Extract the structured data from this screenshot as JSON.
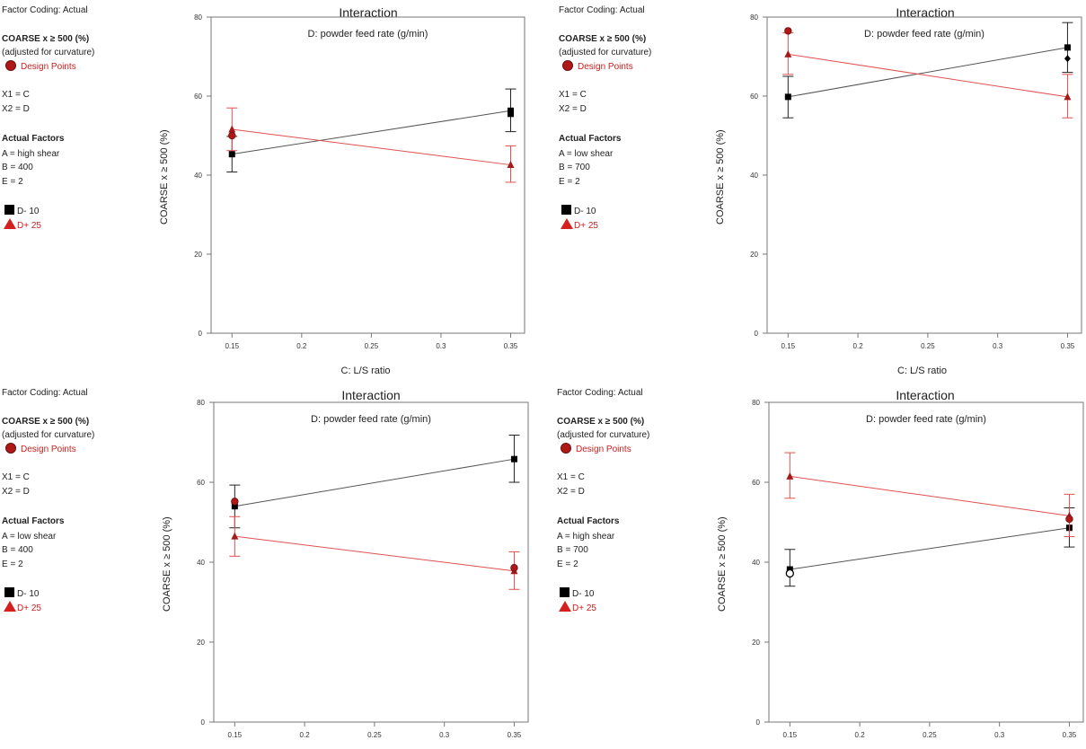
{
  "panels": [
    {
      "sidebar": {
        "factor_coding": "Factor Coding: Actual",
        "response": "COARSE x ≥ 500  (%)",
        "adjusted": "(adjusted for curvature)",
        "design_points": "Design Points",
        "x1": "X1 = C",
        "x2": "X2 = D",
        "actual_factors": "Actual Factors",
        "factor_a": "A = high shear",
        "factor_b": "B = 400",
        "factor_e": "E = 2",
        "legend_low": "D- 10",
        "legend_high": "D+ 25"
      },
      "chart_data": {
        "type": "line",
        "title": "Interaction",
        "subtitle": "D: powder feed rate (g/min)",
        "xlabel": "C: L/S ratio",
        "ylabel": "COARSE x ≥ 500  (%)",
        "x": [
          0.15,
          0.35
        ],
        "xticks": [
          "0.15",
          "0.2",
          "0.25",
          "0.3",
          "0.35"
        ],
        "xtick_values": [
          0.15,
          0.2,
          0.25,
          0.3,
          0.35
        ],
        "yticks": [
          "0",
          "20",
          "40",
          "60",
          "80"
        ],
        "ylim": [
          0,
          80
        ],
        "xlim": [
          0.135,
          0.36
        ],
        "series": [
          {
            "name": "D- 10",
            "color": "#000000",
            "marker": "square",
            "values": [
              45.3,
              56.3
            ],
            "err_low": [
              40.8,
              51.0
            ],
            "err_high": [
              49.8,
              61.8
            ]
          },
          {
            "name": "D+ 25",
            "color": "#e05050",
            "marker": "triangle",
            "values": [
              51.6,
              42.6
            ],
            "err_low": [
              46.2,
              38.2
            ],
            "err_high": [
              57.0,
              47.4
            ]
          }
        ],
        "design_points": [
          {
            "x": 0.15,
            "y": 50.0,
            "shape": "circle"
          },
          {
            "x": 0.35,
            "y": 55.5,
            "shape": "square"
          }
        ]
      }
    },
    {
      "sidebar": {
        "factor_coding": "Factor Coding: Actual",
        "response": "COARSE x ≥ 500  (%)",
        "adjusted": "(adjusted for curvature)",
        "design_points": "Design Points",
        "x1": "X1 = C",
        "x2": "X2 = D",
        "actual_factors": "Actual Factors",
        "factor_a": "A = low shear",
        "factor_b": "B = 700",
        "factor_e": "E = 2",
        "legend_low": "D- 10",
        "legend_high": "D+ 25"
      },
      "chart_data": {
        "type": "line",
        "title": "Interaction",
        "subtitle": "D: powder feed rate (g/min)",
        "xlabel": "C: L/S ratio",
        "ylabel": "COARSE x ≥ 500  (%)",
        "x": [
          0.15,
          0.35
        ],
        "xticks": [
          "0.15",
          "0.2",
          "0.25",
          "0.3",
          "0.35"
        ],
        "xtick_values": [
          0.15,
          0.2,
          0.25,
          0.3,
          0.35
        ],
        "yticks": [
          "0",
          "20",
          "40",
          "60",
          "80"
        ],
        "ylim": [
          0,
          80
        ],
        "xlim": [
          0.135,
          0.36
        ],
        "series": [
          {
            "name": "D- 10",
            "color": "#000000",
            "marker": "square",
            "values": [
              59.8,
              72.3
            ],
            "err_low": [
              54.5,
              66.0
            ],
            "err_high": [
              65.0,
              78.6
            ]
          },
          {
            "name": "D+ 25",
            "color": "#e05050",
            "marker": "triangle",
            "values": [
              70.6,
              59.8
            ],
            "err_low": [
              65.5,
              54.5
            ],
            "err_high": [
              76.0,
              65.5
            ]
          }
        ],
        "design_points": [
          {
            "x": 0.15,
            "y": 76.5,
            "shape": "circle"
          },
          {
            "x": 0.35,
            "y": 69.5,
            "shape": "diamond"
          }
        ]
      }
    },
    {
      "sidebar": {
        "factor_coding": "Factor Coding: Actual",
        "response": "COARSE x ≥ 500  (%)",
        "adjusted": "(adjusted for curvature)",
        "design_points": "Design Points",
        "x1": "X1 = C",
        "x2": "X2 = D",
        "actual_factors": "Actual Factors",
        "factor_a": "A = low shear",
        "factor_b": "B = 400",
        "factor_e": "E = 2",
        "legend_low": "D- 10",
        "legend_high": "D+ 25"
      },
      "chart_data": {
        "type": "line",
        "title": "Interaction",
        "subtitle": "D: powder feed rate (g/min)",
        "xlabel": "",
        "ylabel": "COARSE x ≥ 500  (%)",
        "x": [
          0.15,
          0.35
        ],
        "xticks": [
          "0.15",
          "0.2",
          "0.25",
          "0.3",
          "0.35"
        ],
        "xtick_values": [
          0.15,
          0.2,
          0.25,
          0.3,
          0.35
        ],
        "yticks": [
          "0",
          "20",
          "40",
          "60",
          "80"
        ],
        "ylim": [
          0,
          80
        ],
        "xlim": [
          0.135,
          0.36
        ],
        "series": [
          {
            "name": "D- 10",
            "color": "#000000",
            "marker": "square",
            "values": [
              54.0,
              65.8
            ],
            "err_low": [
              48.6,
              60.0
            ],
            "err_high": [
              59.3,
              71.8
            ]
          },
          {
            "name": "D+ 25",
            "color": "#e05050",
            "marker": "triangle",
            "values": [
              46.5,
              37.8
            ],
            "err_low": [
              41.5,
              33.2
            ],
            "err_high": [
              51.4,
              42.6
            ]
          }
        ],
        "design_points": [
          {
            "x": 0.15,
            "y": 55.2,
            "shape": "circle"
          },
          {
            "x": 0.35,
            "y": 38.6,
            "shape": "circle"
          }
        ]
      }
    },
    {
      "sidebar": {
        "factor_coding": "Factor Coding: Actual",
        "response": "COARSE x ≥ 500  (%)",
        "adjusted": "(adjusted for curvature)",
        "design_points": "Design Points",
        "x1": "X1 = C",
        "x2": "X2 = D",
        "actual_factors": "Actual Factors",
        "factor_a": "A = high shear",
        "factor_b": "B = 700",
        "factor_e": "E = 2",
        "legend_low": "D- 10",
        "legend_high": "D+ 25"
      },
      "chart_data": {
        "type": "line",
        "title": "Interaction",
        "subtitle": "D: powder feed rate (g/min)",
        "xlabel": "",
        "ylabel": "COARSE x ≥ 500  (%)",
        "x": [
          0.15,
          0.35
        ],
        "xticks": [
          "0.15",
          "0.2",
          "0.25",
          "0.3",
          "0.35"
        ],
        "xtick_values": [
          0.15,
          0.2,
          0.25,
          0.3,
          0.35
        ],
        "yticks": [
          "0",
          "20",
          "40",
          "60",
          "80"
        ],
        "ylim": [
          0,
          80
        ],
        "xlim": [
          0.135,
          0.36
        ],
        "series": [
          {
            "name": "D- 10",
            "color": "#000000",
            "marker": "square",
            "values": [
              38.2,
              48.6
            ],
            "err_low": [
              34.0,
              43.8
            ],
            "err_high": [
              43.2,
              53.6
            ]
          },
          {
            "name": "D+ 25",
            "color": "#e05050",
            "marker": "triangle",
            "values": [
              61.5,
              51.6
            ],
            "err_low": [
              56.0,
              46.4
            ],
            "err_high": [
              67.4,
              57.0
            ]
          }
        ],
        "design_points": [
          {
            "x": 0.15,
            "y": 37.2,
            "shape": "open-circle"
          },
          {
            "x": 0.35,
            "y": 50.8,
            "shape": "circle"
          }
        ]
      }
    }
  ]
}
